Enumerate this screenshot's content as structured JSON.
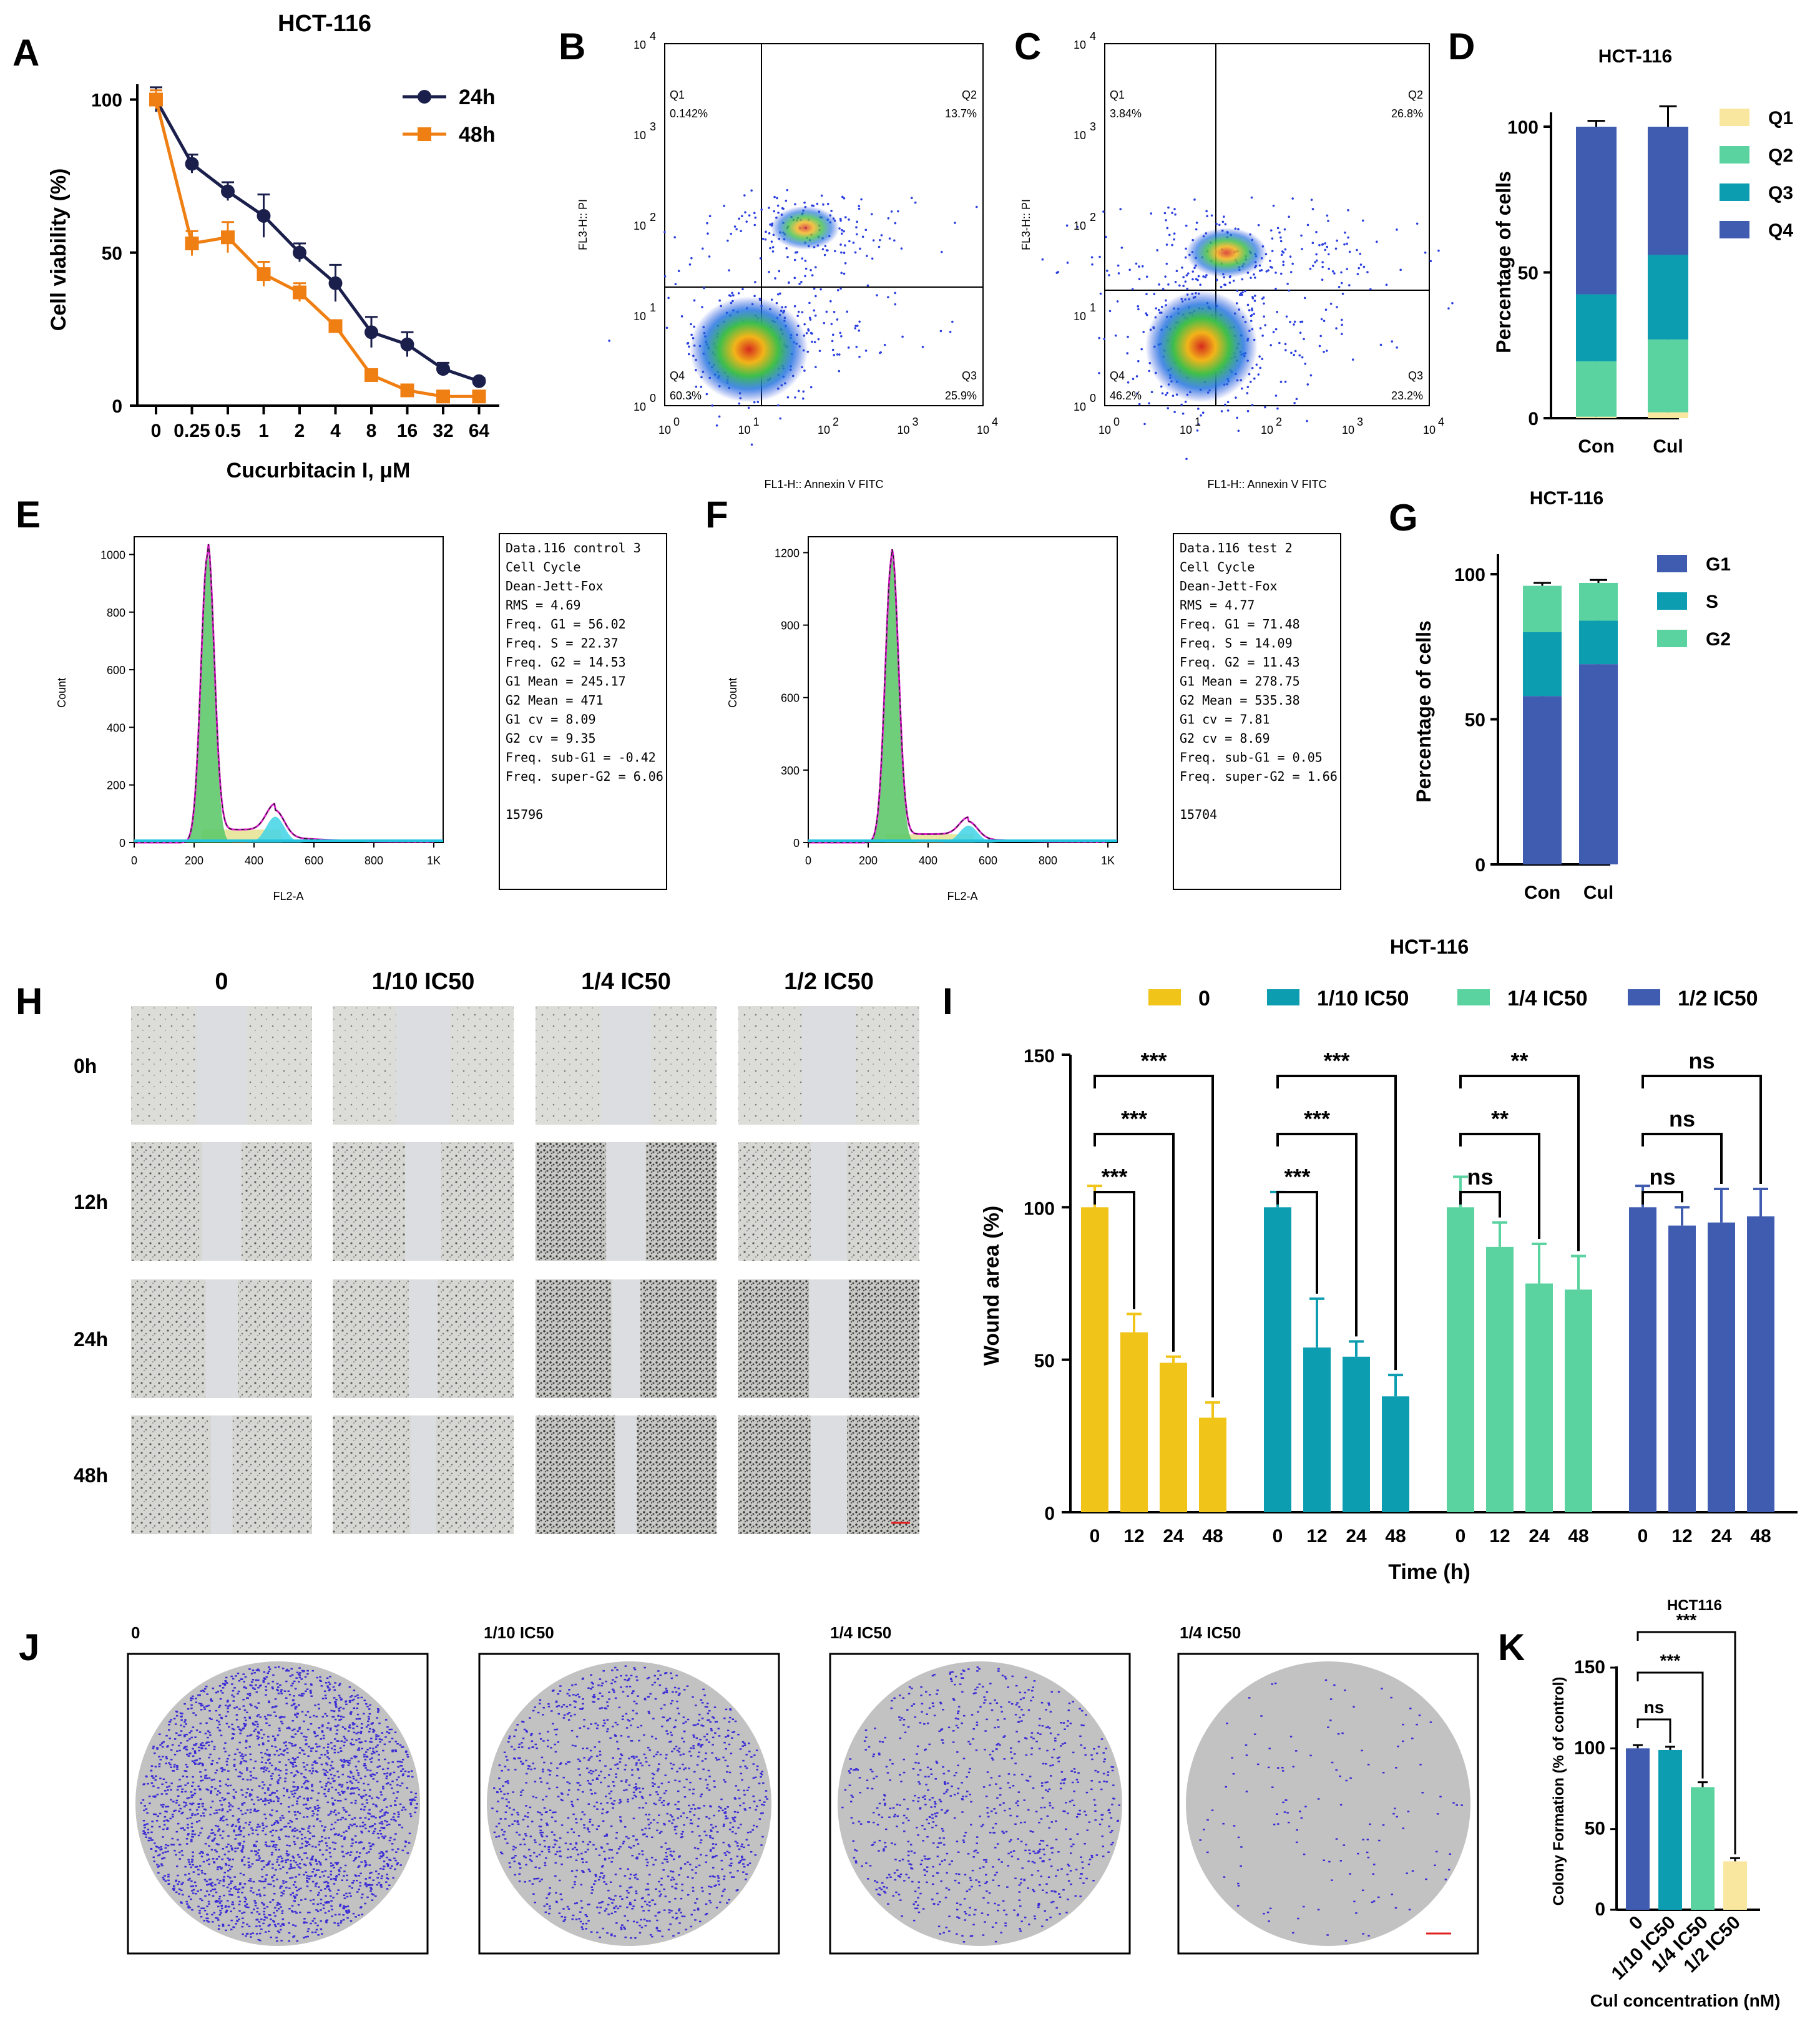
{
  "panel_labels": [
    "A",
    "B",
    "C",
    "D",
    "E",
    "F",
    "G",
    "H",
    "I",
    "J",
    "K"
  ],
  "colors": {
    "navy": "#1b1f4b",
    "orange": "#f07f13",
    "yellow": "#f0c419",
    "teal": "#0d9db1",
    "mint": "#5bd3a0",
    "blue": "#3f5cb1",
    "paleyellow": "#f9e79f",
    "plate": "#c2c2c2",
    "scratchbg": "#d3d3d0"
  },
  "chart_data": [
    {
      "id": "A",
      "type": "line",
      "title": "HCT-116",
      "xlabel": "Cucurbitacin I, μM",
      "ylabel": "Cell viability (%)",
      "categories": [
        "0",
        "0.25",
        "0.5",
        "1",
        "2",
        "4",
        "8",
        "16",
        "32",
        "64"
      ],
      "yticks": [
        "0",
        "50",
        "100"
      ],
      "ylim": [
        0,
        105
      ],
      "series": [
        {
          "name": "24h",
          "values": [
            100,
            79,
            70,
            62,
            50,
            40,
            24,
            20,
            12,
            8
          ],
          "errors": [
            4,
            3,
            3,
            7,
            3,
            6,
            5,
            4,
            2,
            1
          ]
        },
        {
          "name": "48h",
          "values": [
            100,
            53,
            55,
            43,
            37,
            26,
            10,
            5,
            3,
            3
          ],
          "errors": [
            3,
            4,
            5,
            4,
            3,
            1,
            1,
            1,
            1,
            1
          ]
        }
      ]
    },
    {
      "id": "B",
      "type": "scatter",
      "xlabel": "FL1-H:: Annexin V FITC",
      "ylabel": "FL3-H:: PI",
      "ticks": [
        "0",
        "1",
        "2",
        "3",
        "4"
      ],
      "quadrants": [
        {
          "name": "Q1",
          "value": "0.142%"
        },
        {
          "name": "Q2",
          "value": "13.7%"
        },
        {
          "name": "Q3",
          "value": "25.9%"
        },
        {
          "name": "Q4",
          "value": "60.3%"
        }
      ]
    },
    {
      "id": "C",
      "type": "scatter",
      "xlabel": "FL1-H:: Annexin V FITC",
      "ylabel": "FL3-H:: PI",
      "ticks": [
        "0",
        "1",
        "2",
        "3",
        "4"
      ],
      "quadrants": [
        {
          "name": "Q1",
          "value": "3.84%"
        },
        {
          "name": "Q2",
          "value": "26.8%"
        },
        {
          "name": "Q3",
          "value": "23.2%"
        },
        {
          "name": "Q4",
          "value": "46.2%"
        }
      ]
    },
    {
      "id": "D",
      "type": "bar",
      "stacked": true,
      "title": "HCT-116",
      "ylabel": "Percentage of cells",
      "categories": [
        "Con",
        "Cul"
      ],
      "yticks": [
        "0",
        "50",
        "100"
      ],
      "ylim": [
        0,
        100
      ],
      "series": [
        {
          "name": "Q1",
          "values": [
            0.5,
            2
          ],
          "errors": [
            1,
            1.5
          ]
        },
        {
          "name": "Q2",
          "values": [
            19,
            25
          ],
          "errors": [
            3,
            0.5
          ]
        },
        {
          "name": "Q3",
          "values": [
            23,
            29
          ],
          "errors": [
            2,
            9
          ]
        },
        {
          "name": "Q4",
          "values": [
            57.5,
            44
          ],
          "errors": [
            2,
            7
          ]
        }
      ]
    },
    {
      "id": "E",
      "type": "histogram",
      "xlabel": "FL2-A",
      "ylabel": "Count",
      "xticks": [
        "0",
        "200",
        "400",
        "600",
        "800",
        "1K"
      ],
      "yticks": [
        "0",
        "200",
        "400",
        "600",
        "800",
        "1000"
      ],
      "ymax": 1040,
      "stats": [
        "Data.116 control 3",
        "Cell Cycle",
        "Dean-Jett-Fox",
        "RMS  = 4.69",
        "Freq. G1  = 56.02",
        "Freq. S = 22.37",
        "Freq. G2  = 14.53",
        "G1 Mean  = 245.17",
        "G2 Mean  = 471",
        "G1 cv  = 8.09",
        "G2 cv  = 9.35",
        "Freq. sub-G1  = -0.42",
        "Freq. super-G2 = 6.06",
        "",
        "15796"
      ]
    },
    {
      "id": "F",
      "type": "histogram",
      "xlabel": "FL2-A",
      "ylabel": "Count",
      "xticks": [
        "0",
        "200",
        "400",
        "600",
        "800",
        "1K"
      ],
      "yticks": [
        "0",
        "300",
        "600",
        "900",
        "1200"
      ],
      "ymax": 1240,
      "stats": [
        "Data.116 test 2",
        "Cell Cycle",
        "Dean-Jett-Fox",
        "RMS  = 4.77",
        "Freq. G1  = 71.48",
        "Freq. S = 14.09",
        "Freq. G2  = 11.43",
        "G1 Mean  = 278.75",
        "G2 Mean  = 535.38",
        "G1 cv  = 7.81",
        "G2 cv  = 8.69",
        "Freq. sub-G1  = 0.05",
        "Freq. super-G2 = 1.66",
        "",
        "15704"
      ]
    },
    {
      "id": "G",
      "type": "bar",
      "stacked": true,
      "title": "HCT-116",
      "ylabel": "Percentage of cells",
      "categories": [
        "Con",
        "Cul"
      ],
      "yticks": [
        "0",
        "50",
        "100"
      ],
      "ylim": [
        0,
        100
      ],
      "series": [
        {
          "name": "G1",
          "values": [
            58,
            69
          ],
          "errors": [
            2,
            2
          ]
        },
        {
          "name": "S",
          "values": [
            22,
            15
          ],
          "errors": [
            1,
            2
          ]
        },
        {
          "name": "G2",
          "values": [
            16,
            13
          ],
          "errors": [
            1,
            1
          ]
        }
      ]
    },
    {
      "id": "I",
      "type": "bar",
      "title": "HCT-116",
      "xlabel": "Time (h)",
      "ylabel": "Wound area (%)",
      "categories": [
        "0",
        "12",
        "24",
        "48"
      ],
      "yticks": [
        "0",
        "50",
        "100",
        "150"
      ],
      "ylim": [
        0,
        150
      ],
      "series": [
        {
          "name": "0",
          "values": [
            100,
            59,
            49,
            31
          ],
          "errors": [
            7,
            6,
            2,
            5
          ]
        },
        {
          "name": "1/10 IC50",
          "values": [
            100,
            54,
            51,
            38
          ],
          "errors": [
            5,
            16,
            5,
            7
          ]
        },
        {
          "name": "1/4 IC50",
          "values": [
            100,
            87,
            75,
            73
          ],
          "errors": [
            10,
            8,
            13,
            11
          ]
        },
        {
          "name": "1/2 IC50",
          "values": [
            100,
            94,
            95,
            97
          ],
          "errors": [
            7,
            6,
            11,
            9
          ]
        }
      ],
      "significance": [
        [
          "***",
          "***",
          "***"
        ],
        [
          "***",
          "***",
          "***"
        ],
        [
          "ns",
          "**",
          "**"
        ],
        [
          "ns",
          "ns",
          "ns"
        ]
      ]
    },
    {
      "id": "K",
      "type": "bar",
      "title": "HCT116",
      "xlabel": "Cul concentration (nM)",
      "ylabel": "Colony Formation (% of control)",
      "categories": [
        "0",
        "1/10 IC50",
        "1/4 IC50",
        "1/2 IC50"
      ],
      "yticks": [
        "0",
        "50",
        "100",
        "150"
      ],
      "ylim": [
        0,
        150
      ],
      "values": [
        100,
        99,
        76,
        30
      ],
      "errors": [
        2,
        2,
        3,
        2
      ],
      "significance": [
        "ns",
        "***",
        "***"
      ]
    }
  ],
  "panel_H": {
    "columns": [
      "0",
      "1/10 IC50",
      "1/4 IC50",
      "1/2 IC50"
    ],
    "rows": [
      "0h",
      "12h",
      "24h",
      "48h"
    ]
  },
  "panel_J": {
    "labels": [
      "0",
      "1/10 IC50",
      "1/4 IC50",
      "1/4 IC50"
    ]
  }
}
